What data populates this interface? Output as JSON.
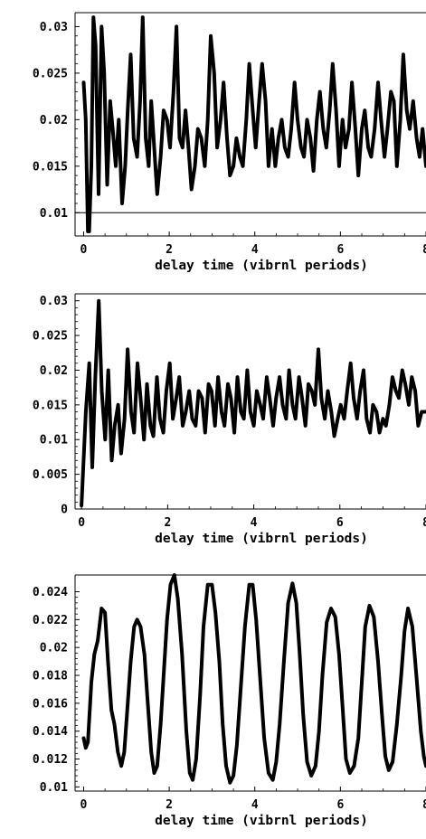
{
  "chart_data": [
    {
      "type": "line",
      "title": "",
      "xlabel": "delay time (vibrnl periods)",
      "ylabel": "",
      "xlim": [
        -0.2,
        8.0
      ],
      "ylim": [
        0.0075,
        0.0315
      ],
      "xticks": [
        0,
        2,
        4,
        6,
        8
      ],
      "xtick_labels": [
        "0",
        "2",
        "4",
        "6",
        "8"
      ],
      "yticks": [
        0.01,
        0.015,
        0.02,
        0.025,
        0.03
      ],
      "ytick_labels": [
        "0.01",
        "0.015",
        "0.02",
        "0.025",
        "0.03"
      ],
      "reference_line": 0.01,
      "series": [
        {
          "x": [
            0,
            0.05,
            0.1,
            0.13,
            0.18,
            0.23,
            0.28,
            0.35,
            0.42,
            0.48,
            0.55,
            0.62,
            0.68,
            0.75,
            0.82,
            0.9,
            0.97,
            1.03,
            1.1,
            1.17,
            1.25,
            1.32,
            1.38,
            1.45,
            1.52,
            1.58,
            1.65,
            1.72,
            1.8,
            1.87,
            1.95,
            2.02,
            2.1,
            2.17,
            2.24,
            2.31,
            2.38,
            2.45,
            2.52,
            2.6,
            2.67,
            2.75,
            2.83,
            2.9,
            2.97,
            3.05,
            3.12,
            3.2,
            3.27,
            3.35,
            3.42,
            3.5,
            3.57,
            3.65,
            3.72,
            3.8,
            3.87,
            3.95,
            4.02,
            4.1,
            4.17,
            4.25,
            4.32,
            4.4,
            4.48,
            4.55,
            4.63,
            4.7,
            4.78,
            4.85,
            4.93,
            5.0,
            5.08,
            5.15,
            5.22,
            5.3,
            5.37,
            5.45,
            5.52,
            5.6,
            5.67,
            5.75,
            5.82,
            5.9,
            5.97,
            6.05,
            6.12,
            6.2,
            6.27,
            6.35,
            6.42,
            6.5,
            6.57,
            6.65,
            6.72,
            6.8,
            6.88,
            6.95,
            7.03,
            7.1,
            7.18,
            7.25,
            7.32,
            7.4,
            7.47,
            7.55,
            7.62,
            7.7,
            7.78,
            7.85,
            7.92,
            8.0
          ],
          "y": [
            0.024,
            0.02,
            0.008,
            0.008,
            0.015,
            0.031,
            0.028,
            0.012,
            0.03,
            0.025,
            0.013,
            0.022,
            0.019,
            0.015,
            0.02,
            0.011,
            0.015,
            0.021,
            0.027,
            0.018,
            0.016,
            0.022,
            0.031,
            0.018,
            0.015,
            0.022,
            0.017,
            0.012,
            0.016,
            0.021,
            0.02,
            0.017,
            0.023,
            0.03,
            0.018,
            0.017,
            0.021,
            0.017,
            0.0125,
            0.015,
            0.019,
            0.018,
            0.015,
            0.02,
            0.029,
            0.025,
            0.017,
            0.02,
            0.024,
            0.018,
            0.014,
            0.015,
            0.018,
            0.016,
            0.015,
            0.02,
            0.026,
            0.021,
            0.017,
            0.022,
            0.026,
            0.022,
            0.015,
            0.019,
            0.015,
            0.018,
            0.02,
            0.017,
            0.016,
            0.019,
            0.024,
            0.02,
            0.017,
            0.016,
            0.02,
            0.018,
            0.0145,
            0.02,
            0.023,
            0.019,
            0.017,
            0.021,
            0.026,
            0.021,
            0.015,
            0.02,
            0.017,
            0.019,
            0.024,
            0.019,
            0.014,
            0.019,
            0.021,
            0.017,
            0.016,
            0.019,
            0.024,
            0.02,
            0.016,
            0.019,
            0.023,
            0.022,
            0.015,
            0.02,
            0.027,
            0.021,
            0.019,
            0.022,
            0.018,
            0.016,
            0.019,
            0.015
          ]
        }
      ]
    },
    {
      "type": "line",
      "title": "",
      "xlabel": "delay time (vibrnl periods)",
      "ylabel": "",
      "xlim": [
        -0.15,
        8.0
      ],
      "ylim": [
        0.0,
        0.031
      ],
      "xticks": [
        0,
        2,
        4,
        6,
        8
      ],
      "xtick_labels": [
        "0",
        "2",
        "4",
        "6",
        "8"
      ],
      "yticks": [
        0,
        0.005,
        0.01,
        0.015,
        0.02,
        0.025,
        0.03
      ],
      "ytick_labels": [
        "0",
        "0.005",
        "0.01",
        "0.015",
        "0.02",
        "0.025",
        "0.03"
      ],
      "series": [
        {
          "x": [
            0,
            0.1,
            0.18,
            0.25,
            0.32,
            0.4,
            0.47,
            0.55,
            0.62,
            0.7,
            0.77,
            0.85,
            0.92,
            1.0,
            1.07,
            1.15,
            1.22,
            1.3,
            1.37,
            1.45,
            1.52,
            1.6,
            1.67,
            1.75,
            1.82,
            1.9,
            1.97,
            2.05,
            2.12,
            2.2,
            2.27,
            2.35,
            2.42,
            2.5,
            2.57,
            2.65,
            2.72,
            2.8,
            2.87,
            2.95,
            3.02,
            3.1,
            3.17,
            3.25,
            3.32,
            3.4,
            3.47,
            3.55,
            3.62,
            3.7,
            3.77,
            3.85,
            3.92,
            4.0,
            4.07,
            4.15,
            4.22,
            4.3,
            4.37,
            4.45,
            4.52,
            4.6,
            4.67,
            4.75,
            4.82,
            4.9,
            4.97,
            5.05,
            5.12,
            5.2,
            5.27,
            5.35,
            5.42,
            5.5,
            5.57,
            5.65,
            5.72,
            5.8,
            5.87,
            5.95,
            6.02,
            6.1,
            6.17,
            6.25,
            6.32,
            6.4,
            6.47,
            6.55,
            6.62,
            6.7,
            6.77,
            6.85,
            6.92,
            7.0,
            7.07,
            7.15,
            7.22,
            7.3,
            7.37,
            7.45,
            7.52,
            7.6,
            7.67,
            7.75,
            7.82,
            7.9,
            8.0
          ],
          "y": [
            0.0005,
            0.014,
            0.021,
            0.006,
            0.019,
            0.03,
            0.017,
            0.01,
            0.02,
            0.007,
            0.012,
            0.015,
            0.008,
            0.013,
            0.023,
            0.014,
            0.011,
            0.021,
            0.016,
            0.01,
            0.018,
            0.012,
            0.0105,
            0.019,
            0.013,
            0.011,
            0.017,
            0.021,
            0.013,
            0.016,
            0.019,
            0.012,
            0.014,
            0.017,
            0.013,
            0.012,
            0.017,
            0.016,
            0.011,
            0.018,
            0.017,
            0.012,
            0.019,
            0.014,
            0.012,
            0.018,
            0.016,
            0.011,
            0.019,
            0.014,
            0.013,
            0.02,
            0.014,
            0.012,
            0.017,
            0.015,
            0.013,
            0.019,
            0.016,
            0.012,
            0.016,
            0.019,
            0.015,
            0.013,
            0.02,
            0.015,
            0.013,
            0.019,
            0.016,
            0.012,
            0.018,
            0.017,
            0.015,
            0.023,
            0.016,
            0.013,
            0.017,
            0.014,
            0.0105,
            0.013,
            0.015,
            0.013,
            0.017,
            0.021,
            0.016,
            0.013,
            0.017,
            0.02,
            0.013,
            0.011,
            0.015,
            0.014,
            0.011,
            0.013,
            0.012,
            0.015,
            0.019,
            0.017,
            0.016,
            0.02,
            0.018,
            0.015,
            0.019,
            0.017,
            0.012,
            0.014,
            0.014
          ]
        }
      ]
    },
    {
      "type": "line",
      "title": "",
      "xlabel": "delay time (vibrnl periods)",
      "ylabel": "",
      "xlim": [
        -0.2,
        8.0
      ],
      "ylim": [
        0.0097,
        0.0252
      ],
      "xticks": [
        0,
        2,
        4,
        6,
        8
      ],
      "xtick_labels": [
        "0",
        "2",
        "4",
        "6",
        "8"
      ],
      "yticks": [
        0.01,
        0.012,
        0.014,
        0.016,
        0.018,
        0.02,
        0.022,
        0.024
      ],
      "ytick_labels": [
        "0.01",
        "0.012",
        "0.014",
        "0.016",
        "0.018",
        "0.02",
        "0.022",
        "0.024"
      ],
      "series": [
        {
          "x": [
            0,
            0.05,
            0.1,
            0.18,
            0.25,
            0.33,
            0.42,
            0.5,
            0.57,
            0.65,
            0.72,
            0.8,
            0.88,
            0.95,
            1.02,
            1.1,
            1.18,
            1.25,
            1.33,
            1.42,
            1.5,
            1.58,
            1.65,
            1.72,
            1.8,
            1.88,
            1.95,
            2.03,
            2.12,
            2.2,
            2.3,
            2.4,
            2.48,
            2.55,
            2.63,
            2.72,
            2.8,
            2.9,
            3.0,
            3.08,
            3.17,
            3.25,
            3.33,
            3.42,
            3.5,
            3.58,
            3.67,
            3.77,
            3.87,
            3.95,
            4.03,
            4.12,
            4.22,
            4.32,
            4.42,
            4.5,
            4.58,
            4.68,
            4.78,
            4.88,
            4.97,
            5.05,
            5.13,
            5.22,
            5.32,
            5.42,
            5.5,
            5.58,
            5.68,
            5.78,
            5.88,
            5.97,
            6.05,
            6.13,
            6.22,
            6.32,
            6.42,
            6.5,
            6.58,
            6.68,
            6.78,
            6.88,
            6.97,
            7.05,
            7.13,
            7.22,
            7.32,
            7.42,
            7.5,
            7.58,
            7.68,
            7.78,
            7.88,
            7.95,
            8.0
          ],
          "y": [
            0.0135,
            0.0128,
            0.0132,
            0.0175,
            0.0195,
            0.0205,
            0.0228,
            0.0225,
            0.019,
            0.0155,
            0.0145,
            0.0125,
            0.0115,
            0.0125,
            0.0155,
            0.019,
            0.0215,
            0.022,
            0.0215,
            0.0195,
            0.016,
            0.0125,
            0.011,
            0.0115,
            0.0145,
            0.0185,
            0.022,
            0.0245,
            0.0252,
            0.0235,
            0.0195,
            0.014,
            0.011,
            0.0105,
            0.012,
            0.0165,
            0.0215,
            0.0245,
            0.0245,
            0.0225,
            0.019,
            0.0145,
            0.0115,
            0.0103,
            0.0108,
            0.013,
            0.017,
            0.0215,
            0.0245,
            0.0245,
            0.022,
            0.018,
            0.0135,
            0.011,
            0.0105,
            0.0118,
            0.0145,
            0.019,
            0.0232,
            0.0246,
            0.0232,
            0.0195,
            0.0152,
            0.0118,
            0.0108,
            0.0115,
            0.014,
            0.018,
            0.0218,
            0.0228,
            0.0222,
            0.0195,
            0.0158,
            0.012,
            0.011,
            0.0115,
            0.0135,
            0.0175,
            0.0215,
            0.023,
            0.0222,
            0.019,
            0.0152,
            0.0122,
            0.0112,
            0.0118,
            0.0145,
            0.018,
            0.0212,
            0.0228,
            0.0215,
            0.0178,
            0.014,
            0.0122,
            0.0115
          ]
        }
      ]
    }
  ]
}
